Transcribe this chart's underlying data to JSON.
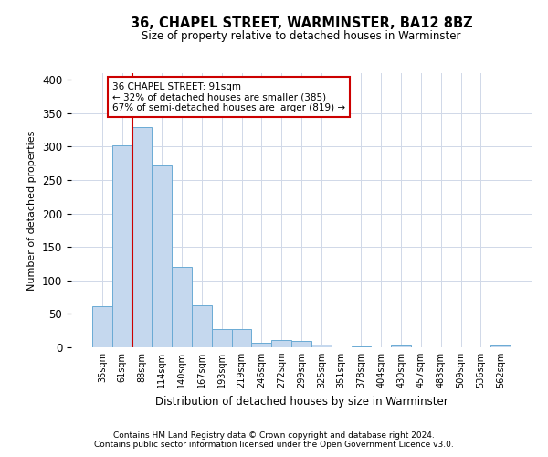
{
  "title1": "36, CHAPEL STREET, WARMINSTER, BA12 8BZ",
  "title2": "Size of property relative to detached houses in Warminster",
  "xlabel": "Distribution of detached houses by size in Warminster",
  "ylabel": "Number of detached properties",
  "footer1": "Contains HM Land Registry data © Crown copyright and database right 2024.",
  "footer2": "Contains public sector information licensed under the Open Government Licence v3.0.",
  "bin_labels": [
    "35sqm",
    "61sqm",
    "88sqm",
    "114sqm",
    "140sqm",
    "167sqm",
    "193sqm",
    "219sqm",
    "246sqm",
    "272sqm",
    "299sqm",
    "325sqm",
    "351sqm",
    "378sqm",
    "404sqm",
    "430sqm",
    "457sqm",
    "483sqm",
    "509sqm",
    "536sqm",
    "562sqm"
  ],
  "bar_values": [
    62,
    302,
    330,
    272,
    120,
    63,
    28,
    28,
    7,
    11,
    10,
    4,
    0,
    2,
    0,
    3,
    0,
    0,
    0,
    0,
    3
  ],
  "bar_color": "#c5d8ee",
  "bar_edge_color": "#6aaad4",
  "grid_color": "#d0d8e8",
  "annotation_text1": "36 CHAPEL STREET: 91sqm",
  "annotation_text2": "← 32% of detached houses are smaller (385)",
  "annotation_text3": "67% of semi-detached houses are larger (819) →",
  "annotation_box_color": "#ffffff",
  "annotation_box_edge": "#cc0000",
  "vline_color": "#cc0000",
  "vline_x": 2.0,
  "ylim": [
    0,
    410
  ],
  "yticks": [
    0,
    50,
    100,
    150,
    200,
    250,
    300,
    350,
    400
  ],
  "background_color": "#ffffff"
}
